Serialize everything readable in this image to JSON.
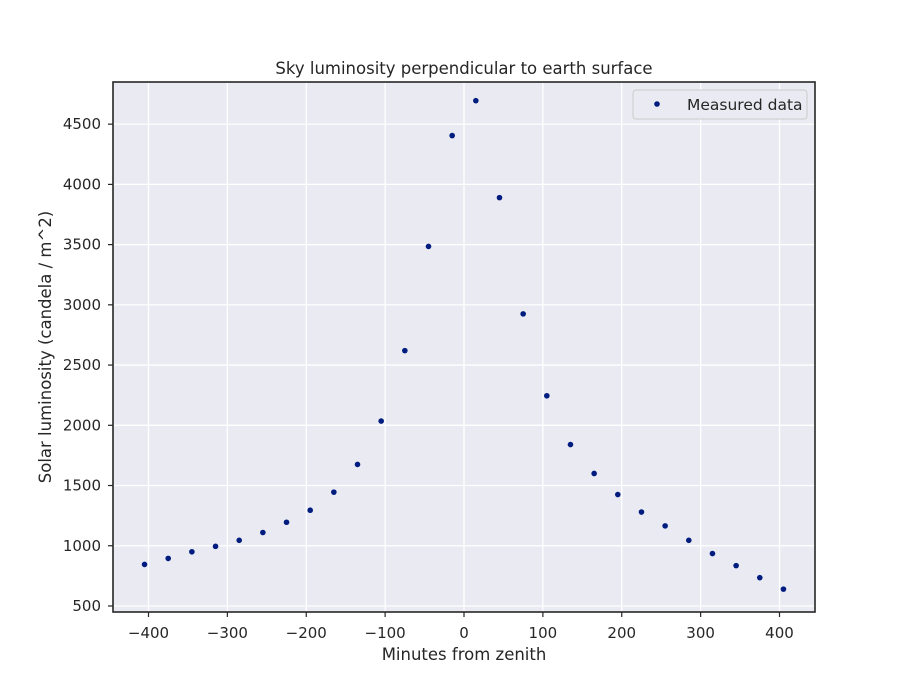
{
  "chart_data": {
    "type": "scatter",
    "title": "Sky luminosity perpendicular to earth surface",
    "xlabel": "Minutes from zenith",
    "ylabel": "Solar luminosity (candela / m^2)",
    "xlim": [
      -445,
      445
    ],
    "ylim": [
      450,
      4850
    ],
    "xticks": [
      -400,
      -300,
      -200,
      -100,
      0,
      100,
      200,
      300,
      400
    ],
    "xtick_labels": [
      "−400",
      "−300",
      "−200",
      "−100",
      "0",
      "100",
      "200",
      "300",
      "400"
    ],
    "yticks": [
      500,
      1000,
      1500,
      2000,
      2500,
      3000,
      3500,
      4000,
      4500
    ],
    "ytick_labels": [
      "500",
      "1000",
      "1500",
      "2000",
      "2500",
      "3000",
      "3500",
      "4000",
      "4500"
    ],
    "grid": true,
    "legend_position": "top-right",
    "background_color": "#eaeaf2",
    "series": [
      {
        "name": "Measured data",
        "color": "#001c7f",
        "x": [
          -405,
          -375,
          -345,
          -315,
          -285,
          -255,
          -225,
          -195,
          -165,
          -135,
          -105,
          -75,
          -45,
          -15,
          15,
          45,
          75,
          105,
          135,
          165,
          195,
          225,
          255,
          285,
          315,
          345,
          375,
          405
        ],
        "y": [
          845,
          895,
          950,
          995,
          1045,
          1110,
          1195,
          1295,
          1445,
          1675,
          2035,
          2620,
          3485,
          4405,
          4695,
          3890,
          2925,
          2245,
          1840,
          1600,
          1425,
          1280,
          1165,
          1045,
          935,
          835,
          735,
          640
        ]
      }
    ]
  }
}
